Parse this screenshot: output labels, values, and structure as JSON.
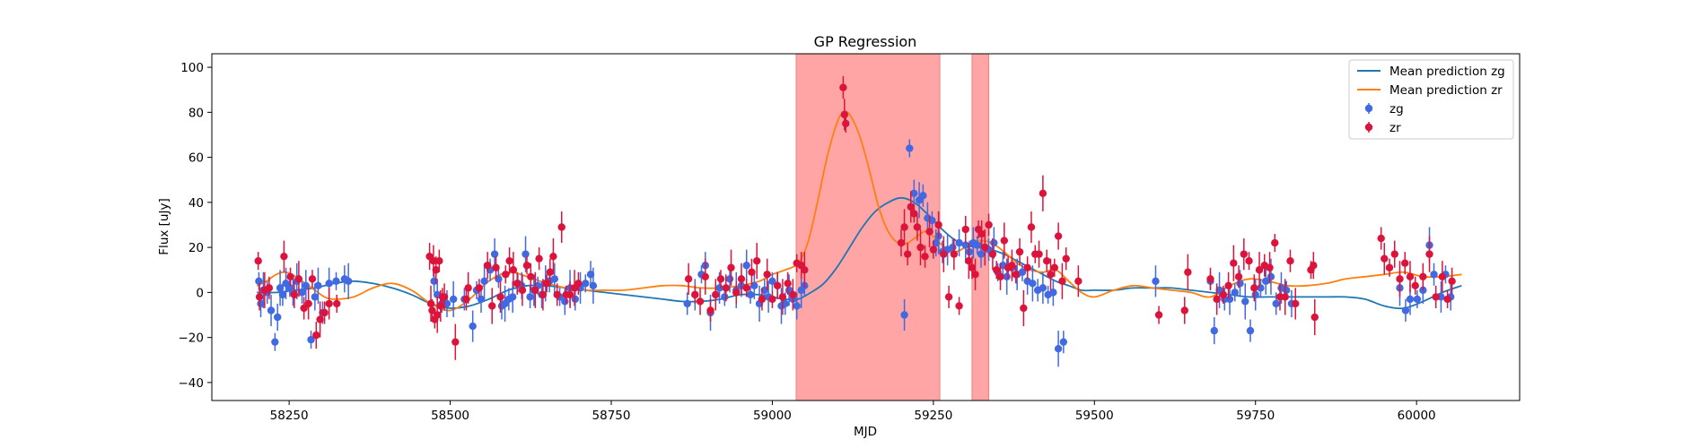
{
  "chart_data": {
    "type": "scatter",
    "title": "GP Regression",
    "xlabel": "MJD",
    "ylabel": "Flux [uJy]",
    "xlim": [
      58130,
      60160
    ],
    "ylim": [
      -48,
      106
    ],
    "xticks": [
      58250,
      58500,
      58750,
      59000,
      59250,
      59500,
      59750,
      60000
    ],
    "yticks": [
      -40,
      -20,
      0,
      20,
      40,
      60,
      80,
      100
    ],
    "grid": false,
    "legend_position": "top-right",
    "shaded_regions": [
      {
        "x0": 59037,
        "x1": 59260,
        "color": "#ffa5a5"
      },
      {
        "x0": 59310,
        "x1": 59336,
        "color": "#ffa5a5"
      }
    ],
    "lines": [
      {
        "name": "Mean prediction zg",
        "color": "#1f77b4",
        "x": [
          58200,
          58230,
          58260,
          58290,
          58320,
          58350,
          58380,
          58410,
          58440,
          58470,
          58500,
          58530,
          58560,
          58590,
          58620,
          58650,
          58680,
          58710,
          58740,
          58770,
          58800,
          58830,
          58860,
          58890,
          58920,
          58950,
          58980,
          59000,
          59020,
          59040,
          59060,
          59080,
          59100,
          59120,
          59140,
          59160,
          59180,
          59200,
          59220,
          59240,
          59260,
          59280,
          59300,
          59320,
          59340,
          59360,
          59380,
          59400,
          59420,
          59440,
          59460,
          59480,
          59500,
          59530,
          59560,
          59590,
          59620,
          59650,
          59680,
          59710,
          59740,
          59770,
          59800,
          59830,
          59860,
          59890,
          59920,
          59950,
          59980,
          60010,
          60040,
          60070
        ],
        "y": [
          0,
          0,
          1,
          2,
          4,
          5,
          4,
          2,
          -1,
          -5,
          -7,
          -6,
          -3,
          1,
          3,
          3,
          2,
          1,
          0,
          -1,
          -2,
          -3,
          -4,
          -4,
          -3,
          -1,
          -1,
          -2,
          -3,
          -3,
          0,
          4,
          11,
          20,
          29,
          36,
          40,
          42,
          40,
          35,
          29,
          24,
          21,
          20,
          19,
          17,
          14,
          11,
          8,
          5,
          3,
          1,
          1,
          1,
          2,
          2,
          2,
          1,
          0,
          -1,
          -2,
          -2,
          -2,
          -2,
          -2,
          -2,
          -3,
          -6,
          -7,
          -4,
          0,
          3
        ]
      },
      {
        "name": "Mean prediction zr",
        "color": "#ff7f0e",
        "x": [
          58200,
          58215,
          58230,
          58245,
          58260,
          58275,
          58290,
          58305,
          58320,
          58350,
          58380,
          58410,
          58440,
          58470,
          58500,
          58530,
          58560,
          58590,
          58620,
          58650,
          58680,
          58710,
          58740,
          58770,
          58800,
          58830,
          58860,
          58890,
          58920,
          58950,
          58980,
          59000,
          59020,
          59040,
          59055,
          59070,
          59085,
          59100,
          59110,
          59120,
          59135,
          59150,
          59165,
          59180,
          59195,
          59210,
          59225,
          59240,
          59260,
          59280,
          59300,
          59320,
          59340,
          59360,
          59380,
          59400,
          59420,
          59440,
          59460,
          59480,
          59500,
          59530,
          59560,
          59590,
          59620,
          59650,
          59680,
          59710,
          59740,
          59770,
          59800,
          59830,
          59860,
          59890,
          59920,
          59950,
          59980,
          60010,
          60040,
          60070
        ],
        "y": [
          3,
          5,
          8,
          9,
          7,
          4,
          1,
          -2,
          -3,
          -2,
          2,
          4,
          1,
          -5,
          -8,
          -3,
          5,
          9,
          7,
          4,
          2,
          1,
          1,
          1,
          2,
          3,
          3,
          2,
          2,
          3,
          5,
          8,
          10,
          13,
          22,
          40,
          60,
          75,
          80,
          79,
          70,
          55,
          38,
          27,
          22,
          22,
          25,
          27,
          22,
          18,
          20,
          23,
          22,
          18,
          13,
          10,
          9,
          10,
          5,
          0,
          -2,
          1,
          3,
          2,
          1,
          0,
          -2,
          3,
          6,
          5,
          3,
          3,
          4,
          6,
          7,
          8,
          9,
          7,
          7,
          8
        ]
      }
    ],
    "series": [
      {
        "name": "zg",
        "color": "#4169e1",
        "x": [
          58203,
          58206,
          58210,
          58216,
          58222,
          58228,
          58232,
          58236,
          58240,
          58245,
          58251,
          58256,
          58262,
          58270,
          58276,
          58284,
          58290,
          58295,
          58302,
          58312,
          58323,
          58336,
          58342,
          58475,
          58480,
          58487,
          58495,
          58505,
          58522,
          58535,
          58541,
          58548,
          58553,
          58562,
          58569,
          58575,
          58580,
          58585,
          58591,
          58597,
          58605,
          58611,
          58617,
          58624,
          58630,
          58636,
          58642,
          58648,
          58654,
          58662,
          58670,
          58678,
          58686,
          58694,
          58702,
          58710,
          58718,
          58722,
          58868,
          58880,
          58890,
          58896,
          58904,
          58912,
          58918,
          58926,
          58934,
          58944,
          58952,
          58960,
          58966,
          58972,
          58980,
          58988,
          58994,
          59000,
          59008,
          59014,
          59020,
          59026,
          59032,
          59038,
          59045,
          59050,
          59205,
          59213,
          59220,
          59228,
          59234,
          59241,
          59248,
          59254,
          59258,
          59264,
          59272,
          59280,
          59290,
          59300,
          59306,
          59312,
          59318,
          59324,
          59330,
          59336,
          59344,
          59350,
          59358,
          59364,
          59372,
          59380,
          59388,
          59396,
          59404,
          59412,
          59420,
          59428,
          59436,
          59444,
          59452,
          59595,
          59680,
          59686,
          59694,
          59702,
          59710,
          59718,
          59726,
          59734,
          59742,
          59750,
          59758,
          59766,
          59774,
          59782,
          59790,
          59798,
          59806,
          59974,
          59983,
          59990,
          60001,
          60010,
          60020,
          60027,
          60038,
          60045,
          60053
        ],
        "y": [
          5,
          -5,
          1,
          0,
          -8,
          -22,
          -11,
          2,
          -1,
          4,
          2,
          0,
          5,
          0,
          3,
          -21,
          -2,
          3,
          -9,
          4,
          5,
          6,
          5,
          5,
          -1,
          -5,
          -5,
          -3,
          -3,
          -15,
          1,
          -3,
          5,
          10,
          17,
          6,
          -6,
          -5,
          -3,
          -2,
          4,
          3,
          17,
          -2,
          1,
          3,
          -1,
          4,
          5,
          6,
          -2,
          -4,
          2,
          -3,
          2,
          4,
          8,
          3,
          -5,
          -1,
          8,
          12,
          -9,
          -1,
          2,
          -2,
          6,
          1,
          3,
          12,
          -1,
          3,
          -5,
          1,
          -2,
          5,
          3,
          -6,
          -5,
          1,
          -3,
          -6,
          1,
          3,
          -10,
          64,
          44,
          41,
          43,
          33,
          32,
          22,
          25,
          18,
          19,
          20,
          22,
          21,
          18,
          22,
          21,
          17,
          20,
          19,
          22,
          9,
          12,
          7,
          11,
          8,
          9,
          5,
          4,
          1,
          2,
          -1,
          0,
          -25,
          -22,
          5,
          5,
          -17,
          1,
          -3,
          -3,
          0,
          4,
          -4,
          -17,
          -1,
          2,
          5,
          7,
          -5,
          2,
          1,
          -5,
          2,
          -8,
          -3,
          -3,
          1,
          21,
          8,
          -2,
          8,
          -2
        ]
      },
      {
        "name": "zr",
        "color": "#dc143c",
        "x": [
          58202,
          58204,
          58212,
          58219,
          58242,
          58252,
          58258,
          58265,
          58273,
          58280,
          58286,
          58292,
          58298,
          58305,
          58312,
          58324,
          58468,
          58470,
          58472,
          58474,
          58476,
          58478,
          58480,
          58483,
          58485,
          58488,
          58491,
          58508,
          58525,
          58528,
          58545,
          58558,
          58565,
          58571,
          58578,
          58586,
          58592,
          58598,
          58604,
          58612,
          58619,
          58625,
          58632,
          58638,
          58644,
          58650,
          58655,
          58660,
          58666,
          58673,
          58680,
          58686,
          58693,
          58699,
          58870,
          58880,
          58888,
          58896,
          58904,
          58912,
          58920,
          58928,
          58936,
          58944,
          58952,
          58960,
          58968,
          58976,
          58984,
          58992,
          59000,
          59008,
          59016,
          59024,
          59032,
          59038,
          59045,
          59050,
          59110,
          59112,
          59114,
          59200,
          59205,
          59210,
          59215,
          59220,
          59225,
          59230,
          59237,
          59244,
          59250,
          59258,
          59266,
          59274,
          59282,
          59290,
          59300,
          59305,
          59310,
          59315,
          59320,
          59325,
          59330,
          59336,
          59342,
          59348,
          59354,
          59360,
          59366,
          59372,
          59378,
          59384,
          59390,
          59396,
          59402,
          59408,
          59414,
          59420,
          59426,
          59432,
          59438,
          59444,
          59450,
          59456,
          59475,
          59600,
          59640,
          59645,
          59680,
          59690,
          59700,
          59708,
          59716,
          59724,
          59732,
          59740,
          59748,
          59756,
          59764,
          59772,
          59780,
          59788,
          59796,
          59804,
          59812,
          59836,
          59840,
          59842,
          59945,
          59950,
          59958,
          59966,
          59974,
          59982,
          59990,
          59998,
          60010,
          60020,
          60030,
          60040,
          60048,
          60055
        ],
        "y": [
          14,
          -2,
          1,
          2,
          16,
          7,
          -1,
          6,
          -7,
          -5,
          6,
          -19,
          -12,
          -9,
          -5,
          -5,
          16,
          -5,
          -8,
          14,
          -12,
          10,
          -10,
          14,
          -6,
          -2,
          -2,
          -22,
          -3,
          2,
          2,
          12,
          -6,
          11,
          -2,
          8,
          14,
          10,
          4,
          1,
          12,
          7,
          1,
          15,
          -1,
          4,
          9,
          16,
          -1,
          29,
          -1,
          -1,
          2,
          4,
          6,
          -1,
          -4,
          7,
          -8,
          -1,
          6,
          2,
          11,
          0,
          6,
          2,
          9,
          14,
          -3,
          8,
          -3,
          3,
          -2,
          4,
          -1,
          13,
          12,
          10,
          91,
          79,
          75,
          22,
          29,
          17,
          38,
          35,
          29,
          20,
          16,
          27,
          19,
          30,
          17,
          -2,
          17,
          -6,
          28,
          14,
          11,
          8,
          28,
          26,
          20,
          30,
          17,
          10,
          7,
          23,
          11,
          12,
          8,
          18,
          -7,
          11,
          29,
          17,
          17,
          44,
          14,
          8,
          11,
          25,
          5,
          15,
          5,
          -10,
          -8,
          9,
          6,
          -3,
          -1,
          3,
          13,
          7,
          17,
          14,
          2,
          10,
          12,
          11,
          22,
          -2,
          -2,
          14,
          -5,
          10,
          12,
          -11,
          24,
          15,
          11,
          17,
          6,
          13,
          7,
          3,
          7,
          17,
          -2,
          7,
          -3,
          5
        ]
      }
    ]
  }
}
